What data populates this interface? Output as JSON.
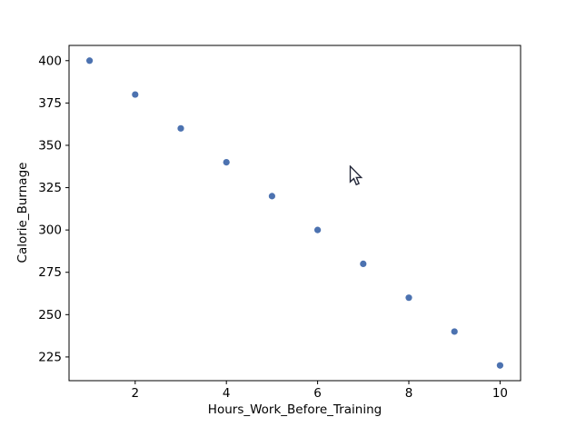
{
  "figure": {
    "background_color": "#ffffff"
  },
  "chart_data": {
    "type": "scatter",
    "xlabel": "Hours_Work_Before_Training",
    "ylabel": "Calorie_Burnage",
    "x": [
      1,
      2,
      3,
      4,
      5,
      6,
      7,
      8,
      9,
      10
    ],
    "y": [
      400,
      380,
      360,
      340,
      320,
      300,
      280,
      260,
      240,
      220
    ],
    "marker_color": "#4C72B0",
    "marker_radius": 3.6,
    "xticks": [
      2,
      4,
      6,
      8,
      10
    ],
    "yticks": [
      225,
      250,
      275,
      300,
      325,
      350,
      375,
      400
    ],
    "xlim": [
      0.55,
      10.45
    ],
    "ylim": [
      211,
      409
    ],
    "grid": false,
    "legend": "none",
    "spine_color": "#000000"
  },
  "icons": {
    "mouse_cursor": "arrow-pointer"
  }
}
